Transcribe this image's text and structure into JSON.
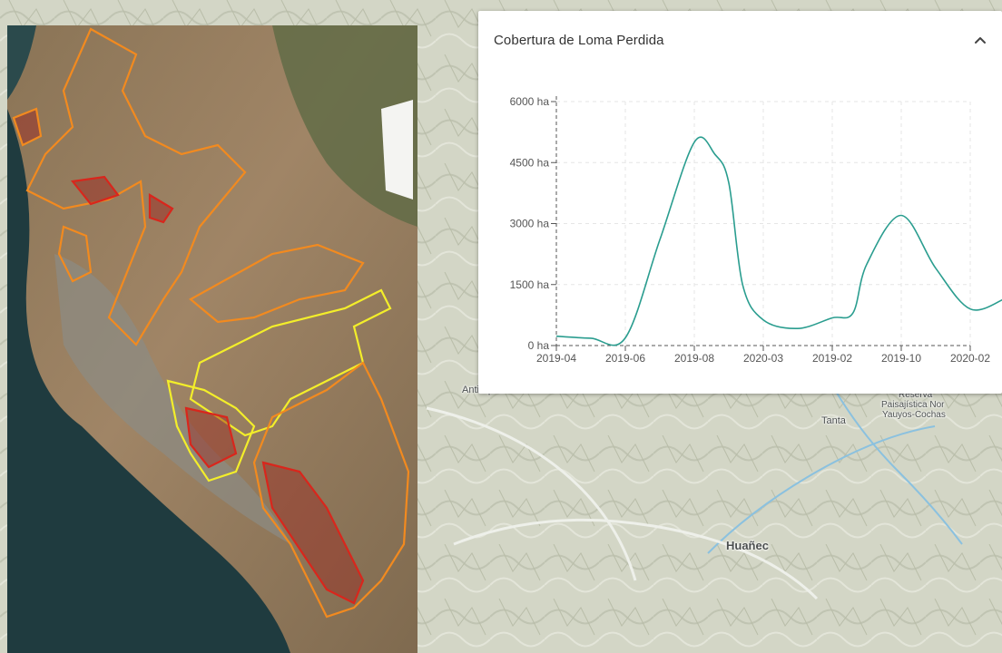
{
  "panel": {
    "title": "Cobertura de Loma Perdida"
  },
  "map_labels": {
    "antioquia": "Antioquia",
    "reserva": "Reserva",
    "paisajistica": "Paisajística Nor",
    "yauyos": "Yauyos-Cochas",
    "tanta": "Tanta",
    "huanec": "Huañec"
  },
  "colors": {
    "line": "#2a9d8f",
    "orange": "#f28a1f",
    "yellow": "#f3ee2a",
    "red": "#d9261c"
  },
  "icons": {
    "collapse": "chevron-up-icon"
  },
  "chart_data": {
    "type": "line",
    "title": "Cobertura de Loma Perdida",
    "categories": [
      "2019-04",
      "2019-06",
      "2019-08",
      "2020-03",
      "2019-02",
      "2019-10",
      "2020-02"
    ],
    "x": [
      0,
      0.5,
      1,
      1.5,
      2,
      2.3,
      2.5,
      2.7,
      3,
      3.5,
      4,
      4.3,
      4.5,
      5,
      5.5,
      6,
      6.5
    ],
    "y": [
      230,
      180,
      190,
      2600,
      5000,
      4700,
      4000,
      1500,
      630,
      420,
      680,
      800,
      2000,
      3200,
      1900,
      900,
      1150
    ],
    "ylim": [
      0,
      6000
    ],
    "yticks": [
      0,
      1500,
      3000,
      4500,
      6000
    ],
    "ytick_labels": [
      "0 ha",
      "1500 ha",
      "3000 ha",
      "4500 ha",
      "6000 ha"
    ],
    "xlabel": "",
    "ylabel": "",
    "grid": true,
    "legend": "none"
  }
}
